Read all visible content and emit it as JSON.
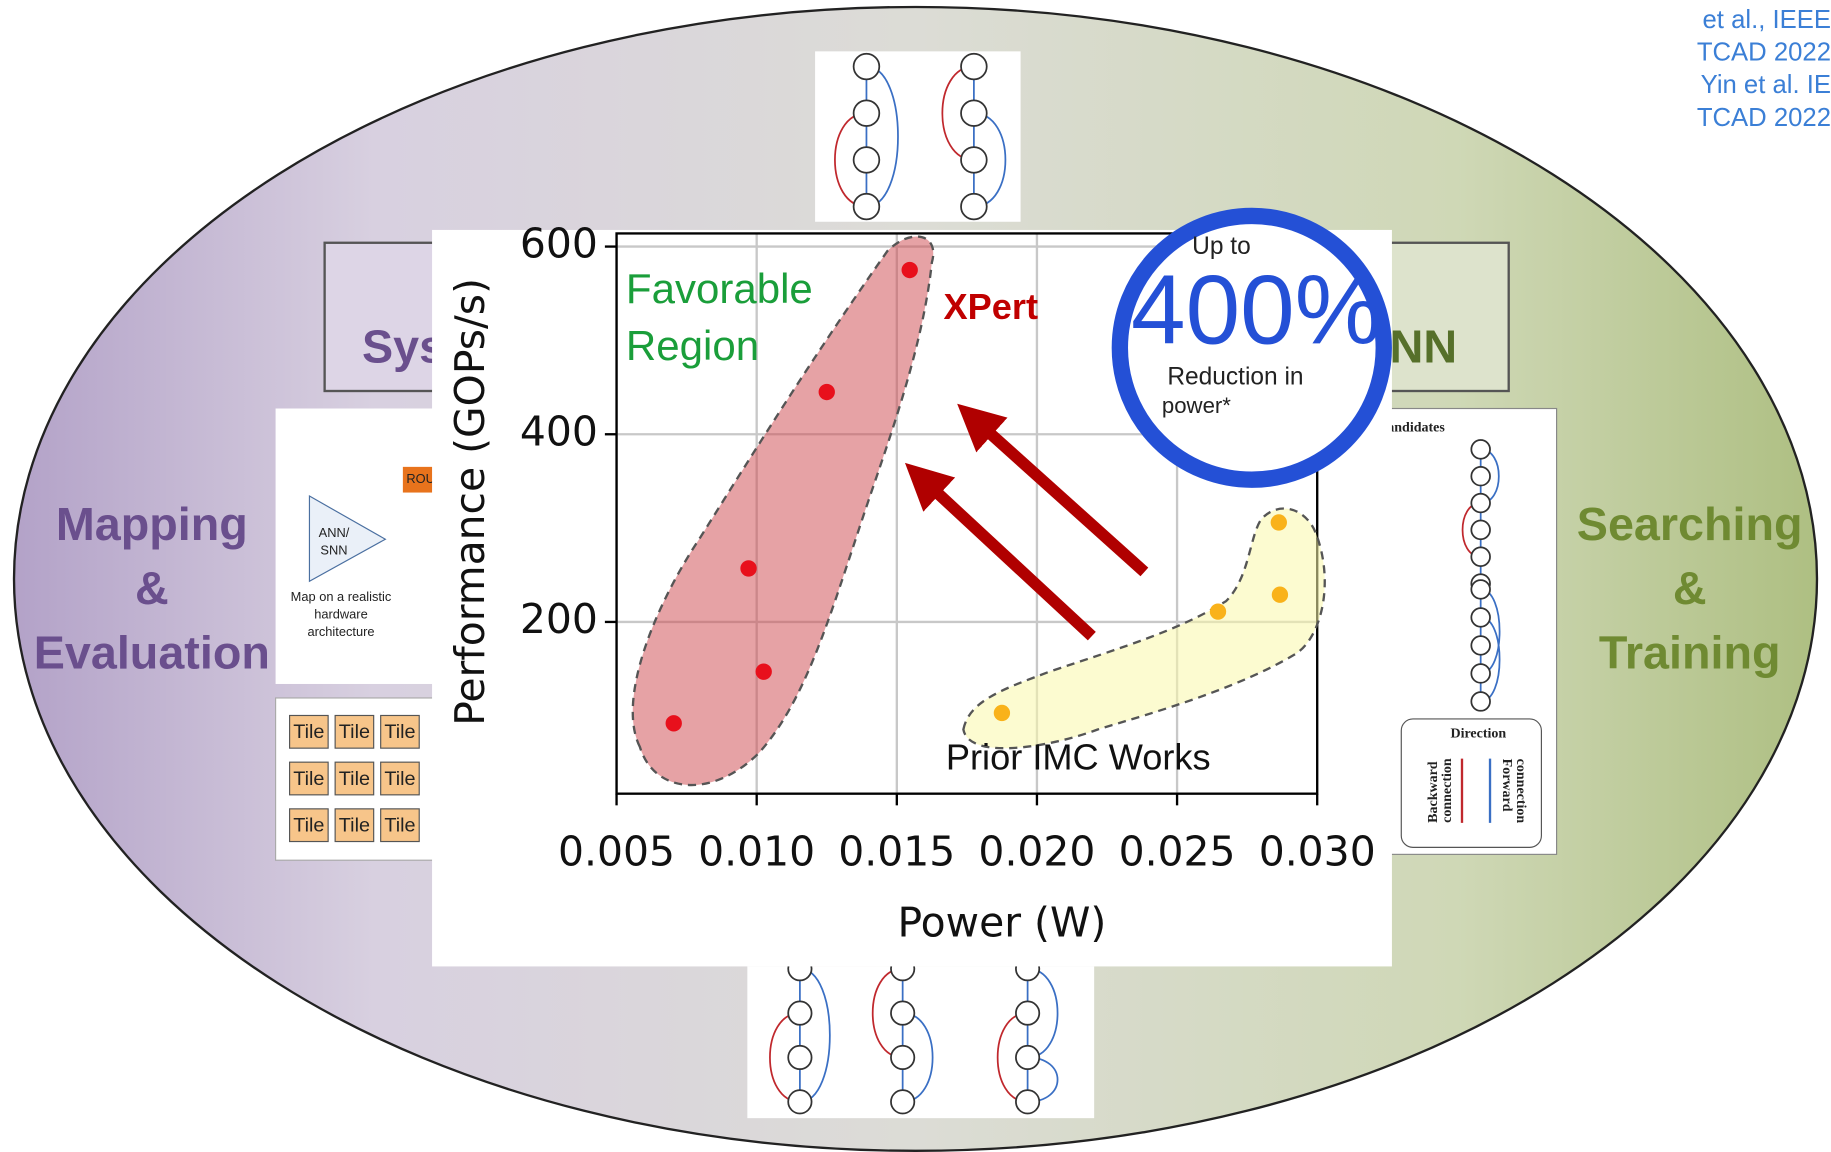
{
  "chart_data": {
    "type": "scatter",
    "xlabel": "Power (W)",
    "ylabel": "Performance (GOPs/s)",
    "xlim": [
      0.005,
      0.03
    ],
    "ylim": [
      17,
      614
    ],
    "xticks": [
      0.005,
      {
        "value": 0.01,
        "label": "0.010"
      },
      0.015,
      {
        "value": 0.02,
        "label": "0.020"
      },
      0.025,
      {
        "value": 0.03,
        "label": "0.030"
      }
    ],
    "yticks": [
      200,
      400,
      600
    ],
    "grid": true,
    "region_label": [
      "Favorable",
      "Region"
    ],
    "series": [
      {
        "name": "XPert",
        "color": "#e8101c",
        "x": [
          0.00704,
          0.00971,
          0.01025,
          0.0125,
          0.01546
        ],
        "values": [
          92,
          257,
          147,
          445,
          575
        ]
      },
      {
        "name": "Prior IMC Works",
        "color": "#f9b21a",
        "x": [
          0.01875,
          0.02646,
          0.02863,
          0.02867
        ],
        "values": [
          103,
          211,
          306,
          229
        ]
      }
    ]
  },
  "badge": {
    "top": "Up to",
    "big": "400%",
    "bottom": [
      "Reduction in",
      "power*"
    ]
  },
  "left_label": [
    "Mapping",
    "&",
    "Evaluation"
  ],
  "right_label": [
    "Searching",
    "&",
    "Training"
  ],
  "left_box": "Sys",
  "right_box": "NN",
  "citation": [
    "et al., IEEE",
    "TCAD 2022",
    "Yin et al. IE",
    "TCAD 2022"
  ],
  "left_inset": {
    "router": "ROU",
    "model": [
      "ANN/",
      "SNN"
    ],
    "caption": [
      "Map on a realistic",
      "hardware",
      "architecture"
    ]
  },
  "tiles": [
    "Tile",
    "Tile",
    "Tile",
    "Tile",
    "Tile",
    "Tile",
    "Tile",
    "Tile",
    "Tile"
  ],
  "right_inset": {
    "title": "andidates",
    "legend_title": "Direction",
    "backward": [
      "Backward",
      "connection"
    ],
    "forward": [
      "Forward",
      "connection"
    ]
  }
}
